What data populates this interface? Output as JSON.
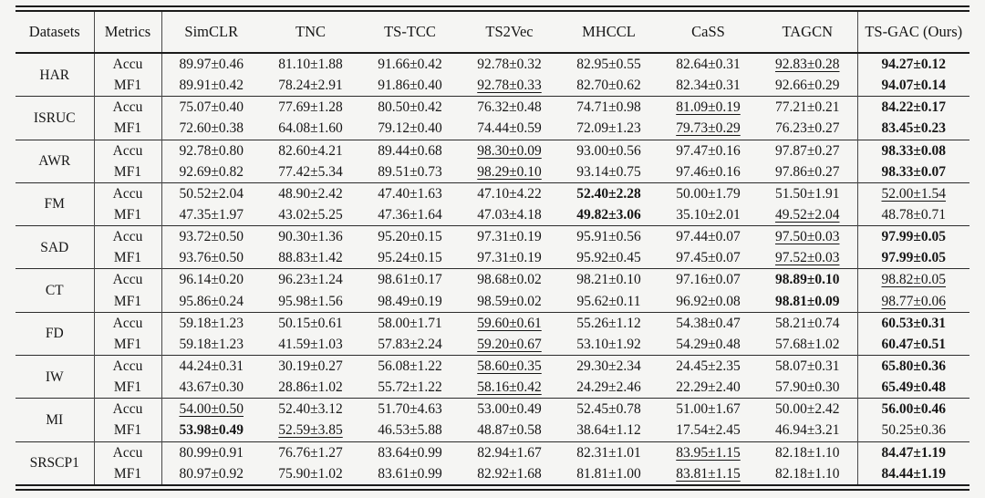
{
  "table": {
    "columns": [
      "Datasets",
      "Metrics",
      "SimCLR",
      "TNC",
      "TS-TCC",
      "TS2Vec",
      "MHCCL",
      "CaSS",
      "TAGCN",
      "TS-GAC (Ours)"
    ],
    "metric_labels": [
      "Accu",
      "MF1"
    ],
    "legend": {
      "bold_means": "best result",
      "underline_means": "second-best result"
    },
    "groups": [
      {
        "dataset": "HAR",
        "rows": [
          {
            "metric": "Accu",
            "cells": [
              "89.97±0.46",
              "81.10±1.88",
              "91.66±0.42",
              "92.78±0.32",
              "82.95±0.55",
              "82.64±0.31",
              "92.83±0.28",
              "94.27±0.12"
            ],
            "marks": [
              "",
              "",
              "",
              "",
              "",
              "",
              "u",
              "b"
            ]
          },
          {
            "metric": "MF1",
            "cells": [
              "89.91±0.42",
              "78.24±2.91",
              "91.86±0.40",
              "92.78±0.33",
              "82.70±0.62",
              "82.34±0.31",
              "92.66±0.29",
              "94.07±0.14"
            ],
            "marks": [
              "",
              "",
              "",
              "u",
              "",
              "",
              "",
              "b"
            ]
          }
        ]
      },
      {
        "dataset": "ISRUC",
        "rows": [
          {
            "metric": "Accu",
            "cells": [
              "75.07±0.40",
              "77.69±1.28",
              "80.50±0.42",
              "76.32±0.48",
              "74.71±0.98",
              "81.09±0.19",
              "77.21±0.21",
              "84.22±0.17"
            ],
            "marks": [
              "",
              "",
              "",
              "",
              "",
              "u",
              "",
              "b"
            ]
          },
          {
            "metric": "MF1",
            "cells": [
              "72.60±0.38",
              "64.08±1.60",
              "79.12±0.40",
              "74.44±0.59",
              "72.09±1.23",
              "79.73±0.29",
              "76.23±0.27",
              "83.45±0.23"
            ],
            "marks": [
              "",
              "",
              "",
              "",
              "",
              "u",
              "",
              "b"
            ]
          }
        ]
      },
      {
        "dataset": "AWR",
        "rows": [
          {
            "metric": "Accu",
            "cells": [
              "92.78±0.80",
              "82.60±4.21",
              "89.44±0.68",
              "98.30±0.09",
              "93.00±0.56",
              "97.47±0.16",
              "97.87±0.27",
              "98.33±0.08"
            ],
            "marks": [
              "",
              "",
              "",
              "u",
              "",
              "",
              "",
              "b"
            ]
          },
          {
            "metric": "MF1",
            "cells": [
              "92.69±0.82",
              "77.42±5.34",
              "89.51±0.73",
              "98.29±0.10",
              "93.14±0.75",
              "97.46±0.16",
              "97.86±0.27",
              "98.33±0.07"
            ],
            "marks": [
              "",
              "",
              "",
              "u",
              "",
              "",
              "",
              "b"
            ]
          }
        ]
      },
      {
        "dataset": "FM",
        "rows": [
          {
            "metric": "Accu",
            "cells": [
              "50.52±2.04",
              "48.90±2.42",
              "47.40±1.63",
              "47.10±4.22",
              "52.40±2.28",
              "50.00±1.79",
              "51.50±1.91",
              "52.00±1.54"
            ],
            "marks": [
              "",
              "",
              "",
              "",
              "b",
              "",
              "",
              "u"
            ]
          },
          {
            "metric": "MF1",
            "cells": [
              "47.35±1.97",
              "43.02±5.25",
              "47.36±1.64",
              "47.03±4.18",
              "49.82±3.06",
              "35.10±2.01",
              "49.52±2.04",
              "48.78±0.71"
            ],
            "marks": [
              "",
              "",
              "",
              "",
              "b",
              "",
              "u",
              ""
            ]
          }
        ]
      },
      {
        "dataset": "SAD",
        "rows": [
          {
            "metric": "Accu",
            "cells": [
              "93.72±0.50",
              "90.30±1.36",
              "95.20±0.15",
              "97.31±0.19",
              "95.91±0.56",
              "97.44±0.07",
              "97.50±0.03",
              "97.99±0.05"
            ],
            "marks": [
              "",
              "",
              "",
              "",
              "",
              "",
              "u",
              "b"
            ]
          },
          {
            "metric": "MF1",
            "cells": [
              "93.76±0.50",
              "88.83±1.42",
              "95.24±0.15",
              "97.31±0.19",
              "95.92±0.45",
              "97.45±0.07",
              "97.52±0.03",
              "97.99±0.05"
            ],
            "marks": [
              "",
              "",
              "",
              "",
              "",
              "",
              "u",
              "b"
            ]
          }
        ]
      },
      {
        "dataset": "CT",
        "rows": [
          {
            "metric": "Accu",
            "cells": [
              "96.14±0.20",
              "96.23±1.24",
              "98.61±0.17",
              "98.68±0.02",
              "98.21±0.10",
              "97.16±0.07",
              "98.89±0.10",
              "98.82±0.05"
            ],
            "marks": [
              "",
              "",
              "",
              "",
              "",
              "",
              "b",
              "u"
            ]
          },
          {
            "metric": "MF1",
            "cells": [
              "95.86±0.24",
              "95.98±1.56",
              "98.49±0.19",
              "98.59±0.02",
              "95.62±0.11",
              "96.92±0.08",
              "98.81±0.09",
              "98.77±0.06"
            ],
            "marks": [
              "",
              "",
              "",
              "",
              "",
              "",
              "b",
              "u"
            ]
          }
        ]
      },
      {
        "dataset": "FD",
        "rows": [
          {
            "metric": "Accu",
            "cells": [
              "59.18±1.23",
              "50.15±0.61",
              "58.00±1.71",
              "59.60±0.61",
              "55.26±1.12",
              "54.38±0.47",
              "58.21±0.74",
              "60.53±0.31"
            ],
            "marks": [
              "",
              "",
              "",
              "u",
              "",
              "",
              "",
              "b"
            ]
          },
          {
            "metric": "MF1",
            "cells": [
              "59.18±1.23",
              "41.59±1.03",
              "57.83±2.24",
              "59.20±0.67",
              "53.10±1.92",
              "54.29±0.48",
              "57.68±1.02",
              "60.47±0.51"
            ],
            "marks": [
              "",
              "",
              "",
              "u",
              "",
              "",
              "",
              "b"
            ]
          }
        ]
      },
      {
        "dataset": "IW",
        "rows": [
          {
            "metric": "Accu",
            "cells": [
              "44.24±0.31",
              "30.19±0.27",
              "56.08±1.22",
              "58.60±0.35",
              "29.30±2.34",
              "24.45±2.35",
              "58.07±0.31",
              "65.80±0.36"
            ],
            "marks": [
              "",
              "",
              "",
              "u",
              "",
              "",
              "",
              "b"
            ]
          },
          {
            "metric": "MF1",
            "cells": [
              "43.67±0.30",
              "28.86±1.02",
              "55.72±1.22",
              "58.16±0.42",
              "24.29±2.46",
              "22.29±2.40",
              "57.90±0.30",
              "65.49±0.48"
            ],
            "marks": [
              "",
              "",
              "",
              "u",
              "",
              "",
              "",
              "b"
            ]
          }
        ]
      },
      {
        "dataset": "MI",
        "rows": [
          {
            "metric": "Accu",
            "cells": [
              "54.00±0.50",
              "52.40±3.12",
              "51.70±4.63",
              "53.00±0.49",
              "52.45±0.78",
              "51.00±1.67",
              "50.00±2.42",
              "56.00±0.46"
            ],
            "marks": [
              "u",
              "",
              "",
              "",
              "",
              "",
              "",
              "b"
            ]
          },
          {
            "metric": "MF1",
            "cells": [
              "53.98±0.49",
              "52.59±3.85",
              "46.53±5.88",
              "48.87±0.58",
              "38.64±1.12",
              "17.54±2.45",
              "46.94±3.21",
              "50.25±0.36"
            ],
            "marks": [
              "b",
              "u",
              "",
              "",
              "",
              "",
              "",
              ""
            ]
          }
        ]
      },
      {
        "dataset": "SRSCP1",
        "rows": [
          {
            "metric": "Accu",
            "cells": [
              "80.99±0.91",
              "76.76±1.27",
              "83.64±0.99",
              "82.94±1.67",
              "82.31±1.01",
              "83.95±1.15",
              "82.18±1.10",
              "84.47±1.19"
            ],
            "marks": [
              "",
              "",
              "",
              "",
              "",
              "u",
              "",
              "b"
            ]
          },
          {
            "metric": "MF1",
            "cells": [
              "80.97±0.92",
              "75.90±1.02",
              "83.61±0.99",
              "82.92±1.68",
              "81.81±1.00",
              "83.81±1.15",
              "82.18±1.10",
              "84.44±1.19"
            ],
            "marks": [
              "",
              "",
              "",
              "",
              "",
              "u",
              "",
              "b"
            ]
          }
        ]
      }
    ]
  }
}
